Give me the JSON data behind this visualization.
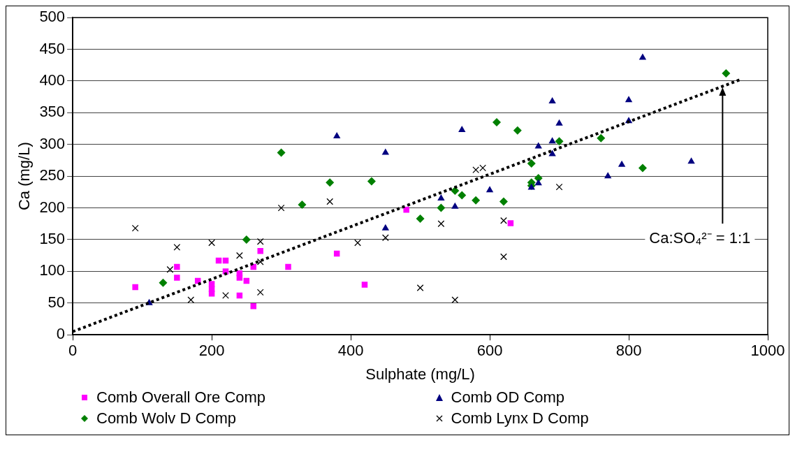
{
  "chart_data": {
    "type": "scatter",
    "xlabel": "Sulphate (mg/L)",
    "ylabel": "Ca (mg/L)",
    "xlim": [
      0,
      1000
    ],
    "xticks": [
      0,
      200,
      400,
      600,
      800,
      1000
    ],
    "ylim": [
      0,
      500
    ],
    "yticks": [
      0,
      50,
      100,
      150,
      200,
      250,
      300,
      350,
      400,
      450,
      500
    ],
    "grid": "y",
    "legend": "bottom",
    "annotations": [
      {
        "text": "Ca:SO₄²⁻ = 1:1",
        "x": 935,
        "y": 390
      }
    ],
    "series": [
      {
        "name": "Comb Overall Ore Comp",
        "color": "#ff00ff",
        "marker": "square",
        "x": [
          90,
          150,
          150,
          180,
          200,
          200,
          200,
          210,
          220,
          220,
          240,
          240,
          240,
          250,
          260,
          260,
          270,
          310,
          380,
          420,
          480,
          630
        ],
        "values": [
          75,
          90,
          107,
          85,
          65,
          72,
          80,
          117,
          117,
          100,
          62,
          90,
          97,
          85,
          45,
          107,
          132,
          107,
          128,
          79,
          197,
          176
        ]
      },
      {
        "name": "Comb OD Comp",
        "color": "#000080",
        "marker": "triangle",
        "x": [
          110,
          380,
          450,
          450,
          530,
          550,
          560,
          600,
          660,
          670,
          670,
          690,
          690,
          690,
          700,
          770,
          790,
          800,
          800,
          820,
          890
        ],
        "values": [
          50,
          313,
          287,
          168,
          215,
          202,
          323,
          228,
          232,
          239,
          297,
          368,
          285,
          305,
          333,
          250,
          268,
          370,
          337,
          437,
          273
        ]
      },
      {
        "name": "Comb Wolv D Comp",
        "color": "#008000",
        "marker": "diamond",
        "x": [
          130,
          250,
          300,
          330,
          370,
          430,
          500,
          530,
          550,
          560,
          580,
          610,
          620,
          640,
          660,
          660,
          660,
          670,
          700,
          760,
          820,
          940
        ],
        "values": [
          82,
          150,
          287,
          205,
          240,
          242,
          183,
          200,
          227,
          220,
          212,
          335,
          210,
          322,
          270,
          240,
          235,
          247,
          305,
          310,
          263,
          412
        ]
      },
      {
        "name": "Comb Lynx D Comp",
        "color": "#000000",
        "marker": "cross",
        "x": [
          90,
          140,
          150,
          170,
          200,
          220,
          240,
          270,
          270,
          270,
          300,
          370,
          410,
          450,
          500,
          530,
          550,
          580,
          590,
          620,
          620,
          700
        ],
        "values": [
          168,
          103,
          138,
          55,
          145,
          62,
          125,
          147,
          115,
          67,
          200,
          210,
          145,
          153,
          74,
          175,
          55,
          260,
          263,
          180,
          123,
          233
        ]
      },
      {
        "type": "line",
        "color": "#000000",
        "marker": "none",
        "line_style": "dotted",
        "x": [
          0,
          960
        ],
        "values": [
          5,
          402
        ]
      }
    ]
  }
}
